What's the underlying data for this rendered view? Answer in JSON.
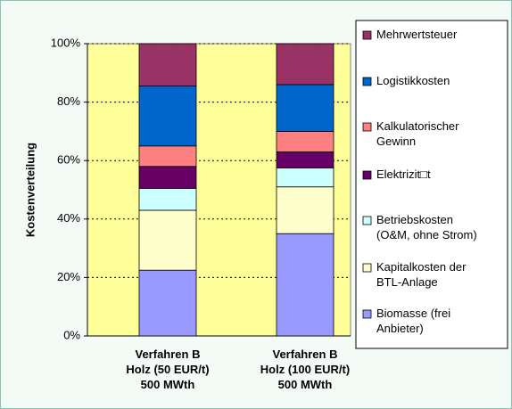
{
  "chart_data": {
    "type": "stacked_bar",
    "ylabel": "Kostenverteilung",
    "categories": [
      "Verfahren B\nHolz (50 EUR/t)\n500 MWth",
      "Verfahren B\nHolz (100 EUR/t)\n500 MWth"
    ],
    "series": [
      {
        "name": "Mehrwertsteuer",
        "color": "#993366",
        "values": [
          14.5,
          14
        ]
      },
      {
        "name": "Logistikkosten",
        "color": "#0066cc",
        "values": [
          20.5,
          16
        ]
      },
      {
        "name": "Kalkulatorischer\nGewinn",
        "color": "#ff8080",
        "values": [
          7,
          7
        ]
      },
      {
        "name": "Elektrizit□t",
        "color": "#660066",
        "values": [
          7.5,
          5.5
        ]
      },
      {
        "name": "Betriebskosten\n(O&M, ohne Strom)",
        "color": "#ccffff",
        "values": [
          7.5,
          6.5
        ]
      },
      {
        "name": "Kapitalkosten der\nBTL-Anlage",
        "color": "#ffffcc",
        "values": [
          20.5,
          16
        ]
      },
      {
        "name": "Biomasse (frei\nAnbieter)",
        "color": "#9999ff",
        "values": [
          22.5,
          35
        ]
      }
    ],
    "ylim": [
      0,
      100
    ],
    "yticks": [
      {
        "value": 0,
        "label": "0%"
      },
      {
        "value": 20,
        "label": "20%"
      },
      {
        "value": 40,
        "label": "40%"
      },
      {
        "value": 60,
        "label": "60%"
      },
      {
        "value": 80,
        "label": "80%"
      },
      {
        "value": 100,
        "label": "100%"
      }
    ],
    "grid": true,
    "plot_background": "#ffff99",
    "legend": "right"
  }
}
